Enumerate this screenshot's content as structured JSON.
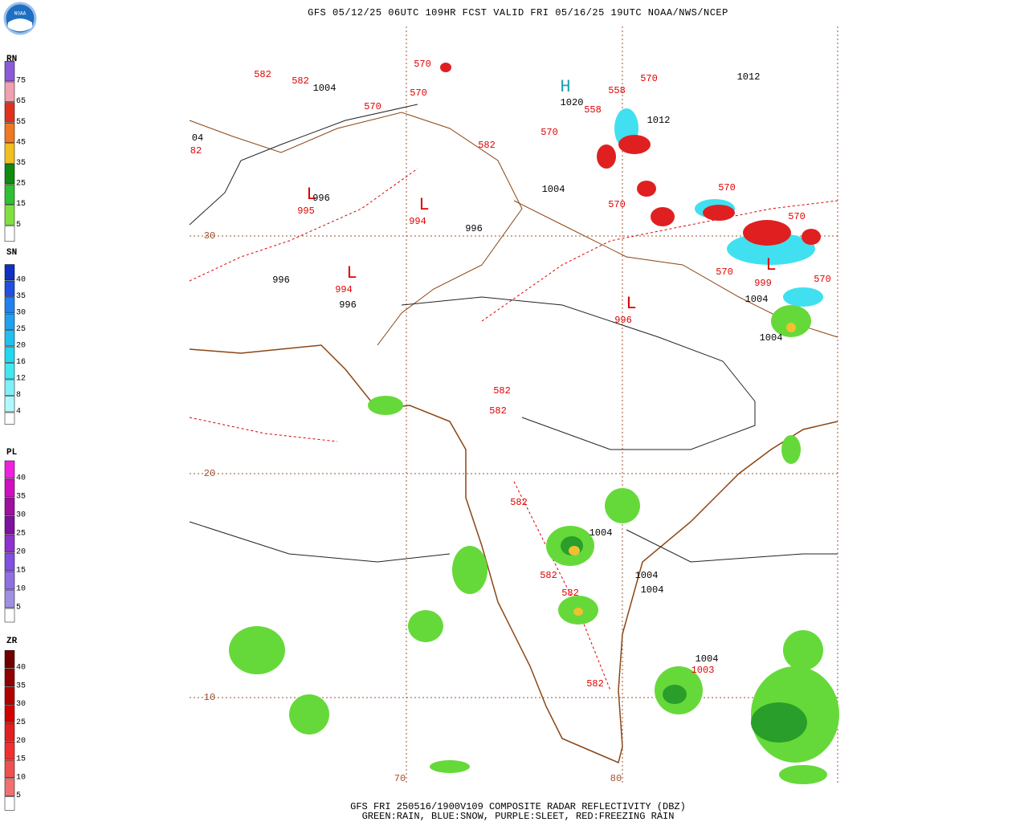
{
  "header": {
    "title": "GFS 05/12/25 06UTC 109HR FCST VALID FRI 05/16/25 19UTC NOAA/NWS/NCEP"
  },
  "logo": {
    "text": "NOAA"
  },
  "legends": [
    {
      "title": "RN",
      "ticks": [
        75,
        65,
        55,
        45,
        35,
        25,
        15,
        5
      ]
    },
    {
      "title": "SN",
      "ticks": [
        40,
        35,
        30,
        25,
        20,
        16,
        12,
        8,
        4
      ]
    },
    {
      "title": "PL",
      "ticks": [
        40,
        35,
        30,
        25,
        20,
        15,
        10,
        5
      ]
    },
    {
      "title": "ZR",
      "ticks": [
        40,
        35,
        30,
        25,
        20,
        15,
        10,
        5
      ]
    }
  ],
  "grid_labels": {
    "latitudes": [
      "30",
      "20",
      "10"
    ],
    "longitudes": [
      "70",
      "80"
    ]
  },
  "map_labels": [
    "582",
    "582",
    "1004",
    "570",
    "570",
    "570",
    "H",
    "1020",
    "558",
    "558",
    "570",
    "1012",
    "1012",
    "570",
    "582",
    "04",
    "82",
    "L",
    "996",
    "995",
    "L",
    "994",
    "996",
    "1004",
    "570",
    "570",
    "570",
    "L",
    "996",
    "994",
    "996",
    "L",
    "996",
    "L",
    "570",
    "999",
    "570",
    "1004",
    "1004",
    "582",
    "582",
    "582",
    "1004",
    "582",
    "1004",
    "1004",
    "582",
    "1004",
    "1003",
    "582"
  ],
  "footer": {
    "line1": "GFS FRI 250516/1900V109 COMPOSITE RADAR REFLECTIVITY (DBZ)",
    "line2": "GREEN:RAIN, BLUE:SNOW, PURPLE:SLEET, RED:FREEZING RAIN"
  }
}
